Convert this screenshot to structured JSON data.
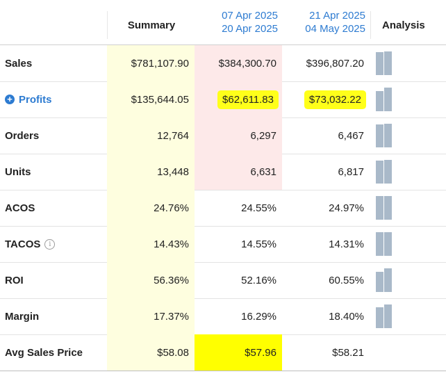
{
  "header": {
    "summary": "Summary",
    "period1_start": "07 Apr 2025",
    "period1_end": "20 Apr 2025",
    "period2_start": "21 Apr 2025",
    "period2_end": "04 May 2025",
    "analysis": "Analysis"
  },
  "rows": [
    {
      "label": "Sales",
      "summary": "$781,107.90",
      "p1": "$384,300.70",
      "p2": "$396,807.20",
      "bars": [
        0.49,
        0.51
      ]
    },
    {
      "label": "Profits",
      "summary": "$135,644.05",
      "p1": "$62,611.83",
      "p2": "$73,032.22",
      "bars": [
        0.46,
        0.54
      ]
    },
    {
      "label": "Orders",
      "summary": "12,764",
      "p1": "6,297",
      "p2": "6,467",
      "bars": [
        0.49,
        0.51
      ]
    },
    {
      "label": "Units",
      "summary": "13,448",
      "p1": "6,631",
      "p2": "6,817",
      "bars": [
        0.49,
        0.51
      ]
    },
    {
      "label": "ACOS",
      "summary": "24.76%",
      "p1": "24.55%",
      "p2": "24.97%",
      "bars": [
        0.5,
        0.5
      ]
    },
    {
      "label": "TACOS",
      "summary": "14.43%",
      "p1": "14.55%",
      "p2": "14.31%",
      "bars": [
        0.5,
        0.5
      ]
    },
    {
      "label": "ROI",
      "summary": "56.36%",
      "p1": "52.16%",
      "p2": "60.55%",
      "bars": [
        0.46,
        0.54
      ]
    },
    {
      "label": "Margin",
      "summary": "17.37%",
      "p1": "16.29%",
      "p2": "18.40%",
      "bars": [
        0.47,
        0.53
      ]
    },
    {
      "label": "Avg Sales Price",
      "summary": "$58.08",
      "p1": "$57.96",
      "p2": "$58.21"
    }
  ],
  "icons": {
    "expand": "+",
    "info": "i"
  },
  "colors": {
    "accent": "#2d7bd1",
    "summary_bg": "#fefedf",
    "period1_bg": "#fde9e9",
    "highlight": "#ffff00",
    "bar": "#a9b9c9"
  }
}
